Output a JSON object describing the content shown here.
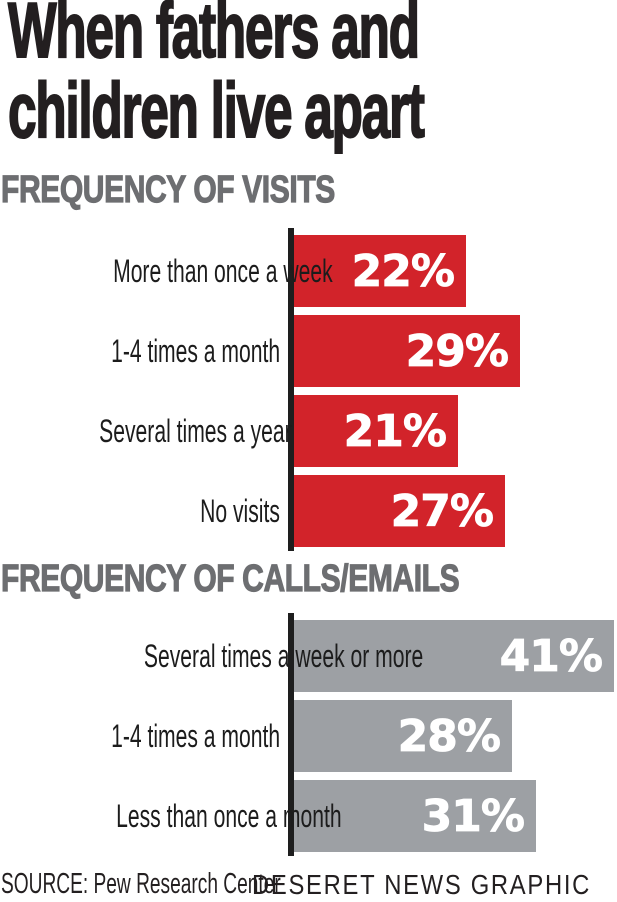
{
  "headline": {
    "line1": "When fathers and",
    "line2": "children live apart"
  },
  "colors": {
    "bar_red": "#d2232a",
    "bar_gray": "#9da0a4",
    "section_header_gray": "#6d6e71",
    "ink": "#231f20",
    "value_label_white": "#ffffff"
  },
  "chart_data": [
    {
      "type": "bar",
      "title": "FREQUENCY OF VISITS",
      "orientation": "horizontal",
      "categories": [
        "More than once a week",
        "1-4 times a month",
        "Several times a year",
        "No visits"
      ],
      "values": [
        22,
        29,
        21,
        27
      ],
      "value_labels": [
        "22%",
        "29%",
        "21%",
        "27%"
      ],
      "unit": "%",
      "bar_color": "#d2232a",
      "xlim": [
        0,
        41
      ],
      "grid": false,
      "value_label_position": "inside-right"
    },
    {
      "type": "bar",
      "title": "FREQUENCY OF CALLS/EMAILS",
      "orientation": "horizontal",
      "categories": [
        "Several times a week or more",
        "1-4 times a month",
        "Less than once a month"
      ],
      "values": [
        41,
        28,
        31
      ],
      "value_labels": [
        "41%",
        "28%",
        "31%"
      ],
      "unit": "%",
      "bar_color": "#9da0a4",
      "xlim": [
        0,
        41
      ],
      "grid": false,
      "value_label_position": "inside-right"
    }
  ],
  "footer": {
    "source": "SOURCE: Pew Research Center",
    "credit": "DESERET NEWS GRAPHIC"
  }
}
